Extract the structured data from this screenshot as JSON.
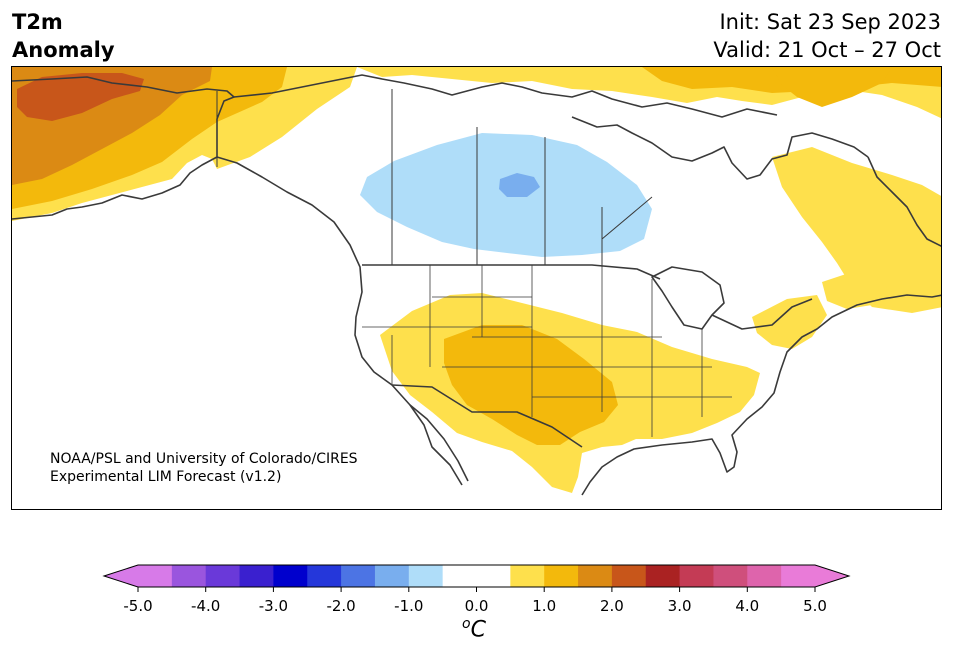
{
  "title": {
    "line1": "T2m",
    "line2": "Anomaly",
    "init": "Init: Sat 23 Sep 2023",
    "valid": "Valid: 21 Oct – 27 Oct"
  },
  "credit": {
    "line1": "NOAA/PSL and University of Colorado/CIRES",
    "line2": "Experimental LIM Forecast (v1.2)"
  },
  "colorbar": {
    "unit_symbol": "o",
    "unit_letter": "C",
    "ticks": [
      "-5.0",
      "-4.0",
      "-3.0",
      "-2.0",
      "-1.0",
      "0.0",
      "1.0",
      "2.0",
      "3.0",
      "4.0",
      "5.0"
    ],
    "colors": [
      "#d77ae8",
      "#9a55de",
      "#6a39d9",
      "#3a20cf",
      "#0000cd",
      "#2537da",
      "#4c74e4",
      "#79aeee",
      "#afddf9",
      "#ffffff",
      "#ffffff",
      "#fee04c",
      "#f3b90c",
      "#db8a14",
      "#c8561a",
      "#aa2222",
      "#c43b55",
      "#cf4f7c",
      "#de64ac",
      "#e97bd8"
    ],
    "under_color": "#d77ae8",
    "over_color": "#e97bd8"
  },
  "map_colors": {
    "light_warm": "#fee04c",
    "warm": "#f3b90c",
    "warmer": "#db8a14",
    "warmest": "#c8561a",
    "light_cool": "#afddf9",
    "cool": "#79aeee",
    "lines": "#3a3a3a"
  }
}
